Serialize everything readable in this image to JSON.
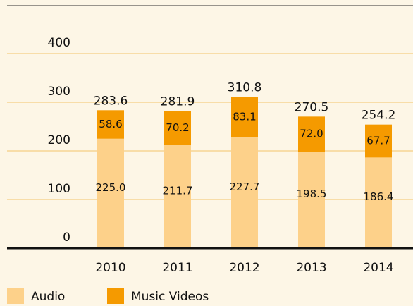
{
  "chart_data": {
    "type": "stacked_bar",
    "categories": [
      "2010",
      "2011",
      "2012",
      "2013",
      "2014"
    ],
    "series": [
      {
        "name": "Audio",
        "color": "#fdd18a",
        "values": [
          225.0,
          211.7,
          227.7,
          198.5,
          186.4
        ],
        "value_labels": [
          "225.0",
          "211.7",
          "227.7",
          "198.5",
          "186.4"
        ]
      },
      {
        "name": "Music Videos",
        "color": "#f59a00",
        "values": [
          58.6,
          70.2,
          83.1,
          72.0,
          67.7
        ],
        "value_labels": [
          "58.6",
          "70.2",
          "83.1",
          "72.0",
          "67.7"
        ]
      }
    ],
    "totals": [
      283.6,
      281.9,
      310.8,
      270.5,
      254.2
    ],
    "ylim": [
      0,
      500
    ],
    "yticks": [
      0,
      100,
      200,
      300,
      400
    ],
    "grid": true
  }
}
